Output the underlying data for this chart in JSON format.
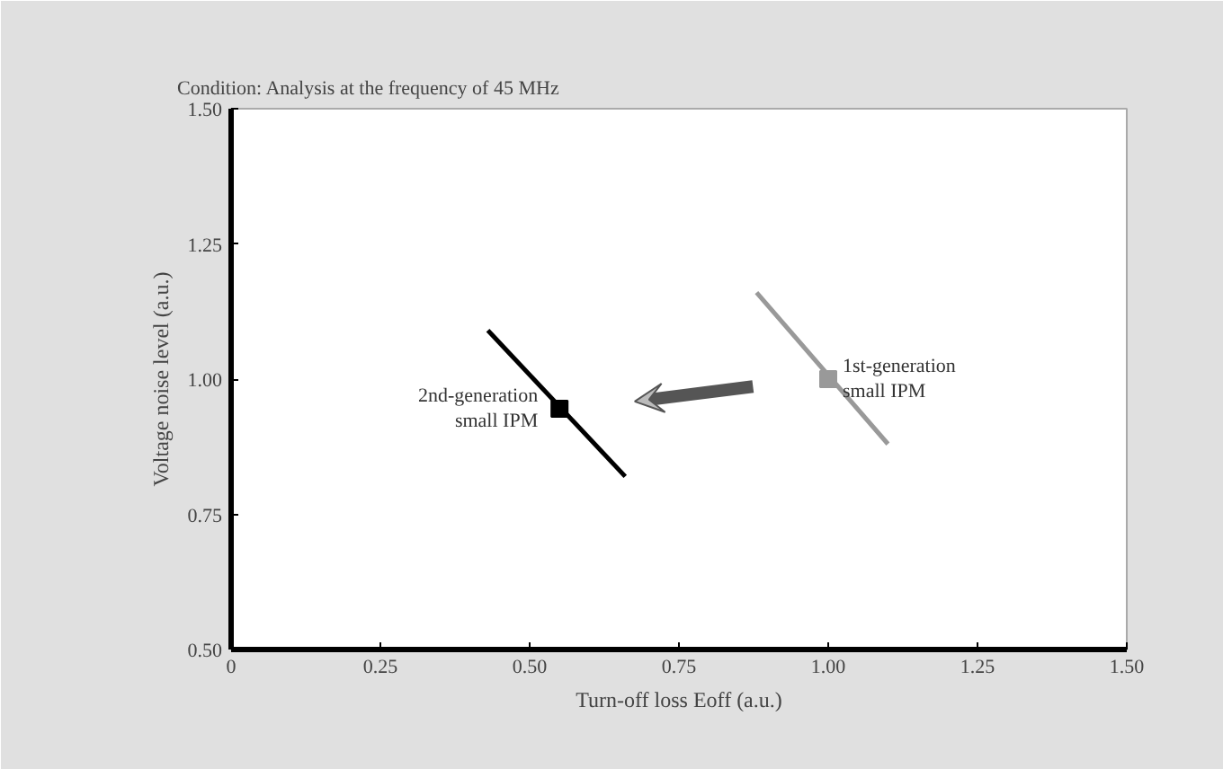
{
  "chart_data": {
    "type": "scatter",
    "title": "Condition:  Analysis at the frequency of 45 MHz",
    "xlabel": "Turn-off loss Eoff (a.u.)",
    "ylabel": "Voltage noise level (a.u.)",
    "xlim": [
      0,
      1.5
    ],
    "ylim": [
      0.5,
      1.5
    ],
    "xticks": [
      0,
      {
        "value": 0.25,
        "label": "0.25"
      },
      {
        "value": 0.5,
        "label": "0.50"
      },
      {
        "value": 0.75,
        "label": "0.75"
      },
      {
        "value": 1,
        "label": "1.00"
      },
      {
        "value": 1.25,
        "label": "1.25"
      },
      {
        "value": 1.5,
        "label": "1.50"
      }
    ],
    "yticks": [
      {
        "value": 0.5,
        "label": "0.50"
      },
      {
        "value": 0.75,
        "label": "0.75"
      },
      {
        "value": 1,
        "label": "1.00"
      },
      {
        "value": 1.25,
        "label": "1.25"
      },
      {
        "value": 1.5,
        "label": "1.50"
      }
    ],
    "grid": false,
    "series": [
      {
        "type": "line",
        "color": "#999999",
        "x": [
          0.88,
          1.1
        ],
        "values": [
          1.16,
          0.88
        ]
      },
      {
        "marker": "square",
        "name": "1st-generation\nsmall IPM",
        "color": "#999999",
        "x": [
          1.0
        ],
        "values": [
          1.0
        ]
      },
      {
        "type": "line",
        "color": "#000000",
        "x": [
          0.43,
          0.66
        ],
        "values": [
          1.09,
          0.82
        ]
      },
      {
        "marker": "square",
        "name": "2nd-generation\nsmall IPM",
        "color": "#000000",
        "x": [
          0.55
        ],
        "values": [
          0.945
        ]
      }
    ]
  }
}
